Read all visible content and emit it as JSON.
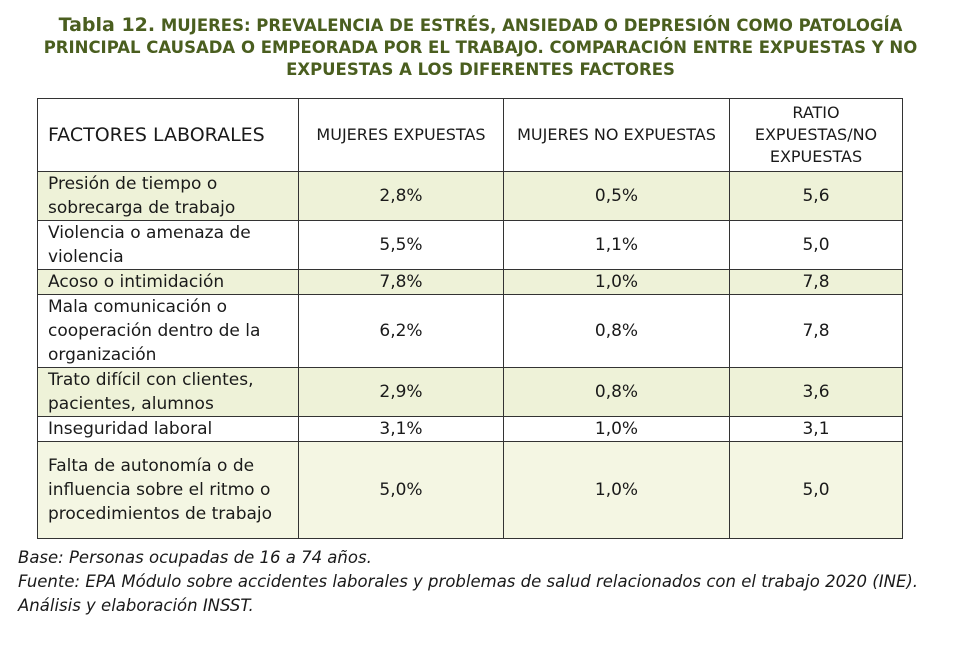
{
  "title": {
    "lead": "Tabla 12.",
    "text": " MUJERES: PREVALENCIA DE ESTRÉS, ANSIEDAD O DEPRESIÓN COMO PATOLOGÍA PRINCIPAL CAUSADA O EMPEORADA POR EL TRABAJO. COMPARACIÓN ENTRE EXPUESTAS Y NO EXPUESTAS A LOS DIFERENTES FACTORES"
  },
  "table": {
    "headers": [
      "FACTORES LABORALES",
      "MUJERES EXPUESTAS",
      "MUJERES NO EXPUESTAS",
      "RATIO EXPUESTAS/NO EXPUESTAS"
    ],
    "rows": [
      {
        "factor": "Presión de tiempo o sobrecarga de trabajo",
        "expuestas": "2,8%",
        "no_expuestas": "0,5%",
        "ratio": "5,6"
      },
      {
        "factor": "Violencia o amenaza de violencia",
        "expuestas": "5,5%",
        "no_expuestas": "1,1%",
        "ratio": "5,0"
      },
      {
        "factor": "Acoso o intimidación",
        "expuestas": "7,8%",
        "no_expuestas": "1,0%",
        "ratio": "7,8"
      },
      {
        "factor": "Mala comunicación o cooperación dentro de la organización",
        "expuestas": "6,2%",
        "no_expuestas": "0,8%",
        "ratio": "7,8"
      },
      {
        "factor": "Trato difícil con clientes, pacientes, alumnos",
        "expuestas": "2,9%",
        "no_expuestas": "0,8%",
        "ratio": "3,6"
      },
      {
        "factor": "Inseguridad laboral",
        "expuestas": "3,1%",
        "no_expuestas": "1,0%",
        "ratio": "3,1"
      },
      {
        "factor": "Falta de autonomía o de influencia sobre el ritmo o procedimientos de trabajo",
        "expuestas": "5,0%",
        "no_expuestas": "1,0%",
        "ratio": "5,0"
      }
    ]
  },
  "footnotes": {
    "base": "Base: Personas ocupadas de 16 a 74 años.",
    "source": "Fuente: EPA Módulo sobre accidentes laborales y problemas de salud relacionados con el trabajo 2020 (INE). Análisis y elaboración INSST."
  },
  "colors": {
    "title": "#4a5e1f",
    "row_shade": "#eef2d8",
    "row_highlight": "#f4f6e3",
    "border": "#333333"
  }
}
